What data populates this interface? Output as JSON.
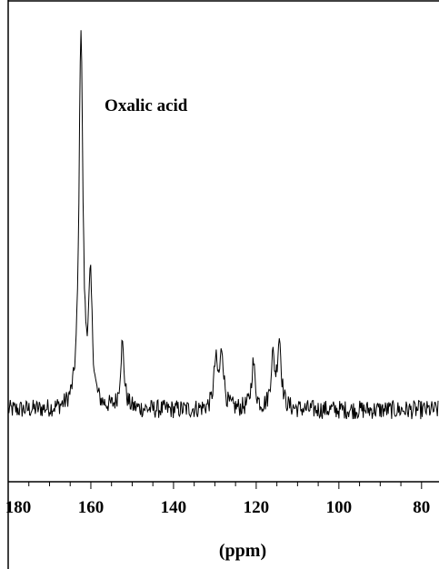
{
  "chart_data": {
    "type": "line",
    "title": "",
    "xlabel": "(ppm)",
    "ylabel": "",
    "xlim": [
      180,
      76
    ],
    "x_reversed": true,
    "ylim": [
      -0.3,
      1.05
    ],
    "grid": false,
    "legend": "none",
    "xticks": [
      180,
      160,
      140,
      120,
      100,
      80
    ],
    "xtick_labels": [
      "180",
      "160",
      "140",
      "120",
      "100",
      "80"
    ],
    "annotations": [
      {
        "text": "Oxalic acid",
        "x": 158,
        "y": 0.82
      }
    ],
    "colors": {
      "line": "#000000",
      "axis": "#000000",
      "background": "#ffffff"
    },
    "series": [
      {
        "baseline": 0.0,
        "noise_amplitude": 0.025,
        "peaks": [
          {
            "x": 162.4,
            "height": 1.0
          },
          {
            "x": 160.1,
            "height": 0.31
          },
          {
            "x": 152.4,
            "height": 0.17
          },
          {
            "x": 129.8,
            "height": 0.12
          },
          {
            "x": 128.3,
            "height": 0.15
          },
          {
            "x": 120.7,
            "height": 0.12
          },
          {
            "x": 116.0,
            "height": 0.13
          },
          {
            "x": 114.4,
            "height": 0.18
          }
        ]
      }
    ]
  }
}
